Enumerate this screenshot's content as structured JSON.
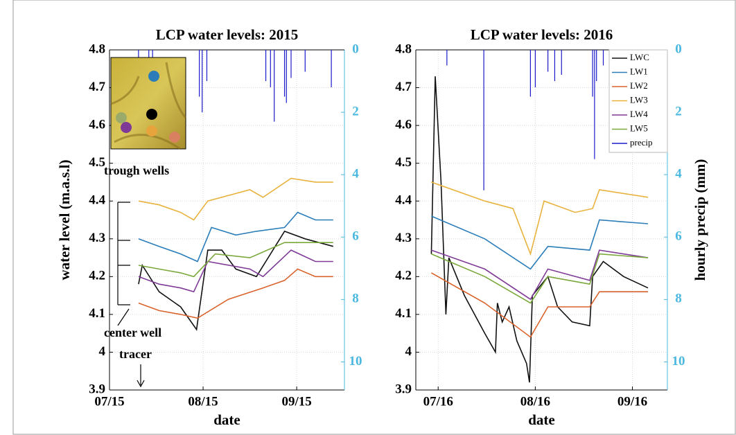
{
  "chart_data": [
    {
      "type": "line",
      "title": "LCP water levels: 2015",
      "xlabel": "date",
      "ylabel": "water level (m.a.s.l)",
      "annotations": [
        "trough wells",
        "center well",
        "tracer"
      ],
      "xlim": [
        7,
        9.51
      ],
      "xticks": [
        {
          "value": 7,
          "label": "07/15"
        },
        {
          "value": 8,
          "label": "08/15"
        },
        {
          "value": 9,
          "label": "09/15"
        }
      ],
      "ylim": [
        3.9,
        4.8
      ],
      "yticks": [
        3.9,
        4,
        4.1,
        4.2,
        4.3,
        4.4,
        4.5,
        4.6,
        4.7,
        4.8
      ],
      "y2lim": [
        0,
        10.9
      ],
      "y2ticks": [
        0,
        2,
        4,
        6,
        8,
        10
      ],
      "y2_inverted": true,
      "grid": true,
      "series": [
        {
          "name": "LWC",
          "color": "#111111",
          "x": [
            7.31,
            7.35,
            7.53,
            7.76,
            7.93,
            8.05,
            8.2,
            8.35,
            8.57,
            8.87,
            9.09,
            9.39
          ],
          "values": [
            4.18,
            4.23,
            4.16,
            4.12,
            4.06,
            4.27,
            4.27,
            4.22,
            4.2,
            4.32,
            4.3,
            4.28
          ]
        },
        {
          "name": "LW1",
          "color": "#2a7db8",
          "x": [
            7.31,
            7.53,
            7.76,
            7.94,
            8.09,
            8.35,
            8.57,
            8.87,
            9.01,
            9.2,
            9.39
          ],
          "values": [
            4.3,
            4.28,
            4.26,
            4.24,
            4.33,
            4.31,
            4.32,
            4.33,
            4.37,
            4.35,
            4.35
          ]
        },
        {
          "name": "LW2",
          "color": "#d9622b",
          "x": [
            7.31,
            7.53,
            7.76,
            7.94,
            8.27,
            8.64,
            8.87,
            9.01,
            9.2,
            9.39
          ],
          "values": [
            4.13,
            4.11,
            4.1,
            4.09,
            4.14,
            4.17,
            4.19,
            4.22,
            4.2,
            4.2
          ]
        },
        {
          "name": "LW3",
          "color": "#e8b23c",
          "x": [
            7.31,
            7.53,
            7.76,
            7.9,
            8.05,
            8.5,
            8.64,
            8.94,
            9.2,
            9.39
          ],
          "values": [
            4.4,
            4.39,
            4.37,
            4.35,
            4.4,
            4.43,
            4.41,
            4.46,
            4.45,
            4.45
          ]
        },
        {
          "name": "LW4",
          "color": "#7e3a96",
          "x": [
            7.31,
            7.53,
            7.76,
            7.9,
            8.05,
            8.5,
            8.64,
            8.94,
            9.2,
            9.39
          ],
          "values": [
            4.2,
            4.18,
            4.17,
            4.16,
            4.24,
            4.22,
            4.2,
            4.27,
            4.24,
            4.24
          ]
        },
        {
          "name": "LW5",
          "color": "#7aa83a",
          "x": [
            7.31,
            7.53,
            7.76,
            7.9,
            8.13,
            8.5,
            8.87,
            9.09,
            9.39
          ],
          "values": [
            4.23,
            4.22,
            4.21,
            4.2,
            4.26,
            4.25,
            4.29,
            4.29,
            4.29
          ]
        },
        {
          "name": "precip",
          "color": "#1a1acc",
          "axis": "y2",
          "style": "bars",
          "x": [
            7.31,
            7.42,
            7.46,
            7.96,
            7.99,
            8.04,
            8.67,
            8.72,
            8.76,
            8.87,
            8.89,
            8.94,
            9.09,
            9.37
          ],
          "values": [
            0.5,
            1.0,
            0.5,
            1.5,
            2.0,
            1.0,
            1.0,
            1.2,
            2.3,
            1.5,
            1.7,
            0.9,
            0.7,
            1.2
          ]
        }
      ]
    },
    {
      "type": "line",
      "title": "LCP water levels: 2016",
      "xlabel": "date",
      "y2label": "hourly precip (mm)",
      "legend": "upper right",
      "xlim": [
        6.77,
        9.36
      ],
      "xticks": [
        {
          "value": 7,
          "label": "07/16"
        },
        {
          "value": 8,
          "label": "08/16"
        },
        {
          "value": 9,
          "label": "09/16"
        }
      ],
      "ylim": [
        3.9,
        4.8
      ],
      "yticks": [
        3.9,
        4,
        4.1,
        4.2,
        4.3,
        4.4,
        4.5,
        4.6,
        4.7,
        4.8
      ],
      "y2lim": [
        0,
        10.9
      ],
      "y2ticks": [
        0,
        2,
        4,
        6,
        8,
        10
      ],
      "y2_inverted": true,
      "grid": true,
      "series": [
        {
          "name": "LWC",
          "color": "#111111",
          "x": [
            6.93,
            6.97,
            7.03,
            7.08,
            7.11,
            7.27,
            7.48,
            7.59,
            7.61,
            7.66,
            7.73,
            7.81,
            7.91,
            7.94,
            7.97,
            8.13,
            8.23,
            8.38,
            8.56,
            8.59,
            8.7,
            8.91,
            9.16
          ],
          "values": [
            4.26,
            4.73,
            4.45,
            4.1,
            4.25,
            4.15,
            4.05,
            4.0,
            4.13,
            4.08,
            4.12,
            4.03,
            3.97,
            3.92,
            4.15,
            4.2,
            4.12,
            4.08,
            4.07,
            4.2,
            4.24,
            4.2,
            4.17
          ]
        },
        {
          "name": "LW1",
          "color": "#2a7db8",
          "x": [
            6.93,
            7.48,
            7.95,
            8.13,
            8.56,
            8.66,
            9.16
          ],
          "values": [
            4.36,
            4.3,
            4.22,
            4.28,
            4.27,
            4.35,
            4.34
          ]
        },
        {
          "name": "LW2",
          "color": "#d9622b",
          "x": [
            6.93,
            7.48,
            7.95,
            8.13,
            8.56,
            8.66,
            9.16
          ],
          "values": [
            4.21,
            4.13,
            4.04,
            4.12,
            4.12,
            4.16,
            4.16
          ]
        },
        {
          "name": "LW3",
          "color": "#e8b23c",
          "x": [
            6.93,
            7.48,
            7.77,
            7.95,
            8.09,
            8.41,
            8.59,
            8.66,
            9.16
          ],
          "values": [
            4.45,
            4.4,
            4.38,
            4.26,
            4.4,
            4.37,
            4.38,
            4.43,
            4.41
          ]
        },
        {
          "name": "LW4",
          "color": "#7e3a96",
          "x": [
            6.93,
            7.48,
            7.95,
            8.13,
            8.56,
            8.66,
            9.16
          ],
          "values": [
            4.27,
            4.22,
            4.14,
            4.22,
            4.19,
            4.27,
            4.25
          ]
        },
        {
          "name": "LW5",
          "color": "#7aa83a",
          "x": [
            6.93,
            7.48,
            7.95,
            8.13,
            8.56,
            8.66,
            9.16
          ],
          "values": [
            4.26,
            4.2,
            4.13,
            4.2,
            4.18,
            4.26,
            4.25
          ]
        },
        {
          "name": "precip",
          "color": "#1a1acc",
          "axis": "y2",
          "style": "bars",
          "x": [
            7.09,
            7.47,
            7.95,
            8.0,
            8.13,
            8.2,
            8.27,
            8.59,
            8.61,
            8.63,
            8.7,
            8.77,
            8.91,
            9.2
          ],
          "values": [
            0.5,
            4.5,
            1.5,
            1.2,
            0.7,
            1.0,
            0.8,
            1.5,
            3.5,
            1.0,
            0.5,
            0.5,
            0.6,
            0.5
          ]
        }
      ]
    }
  ]
}
